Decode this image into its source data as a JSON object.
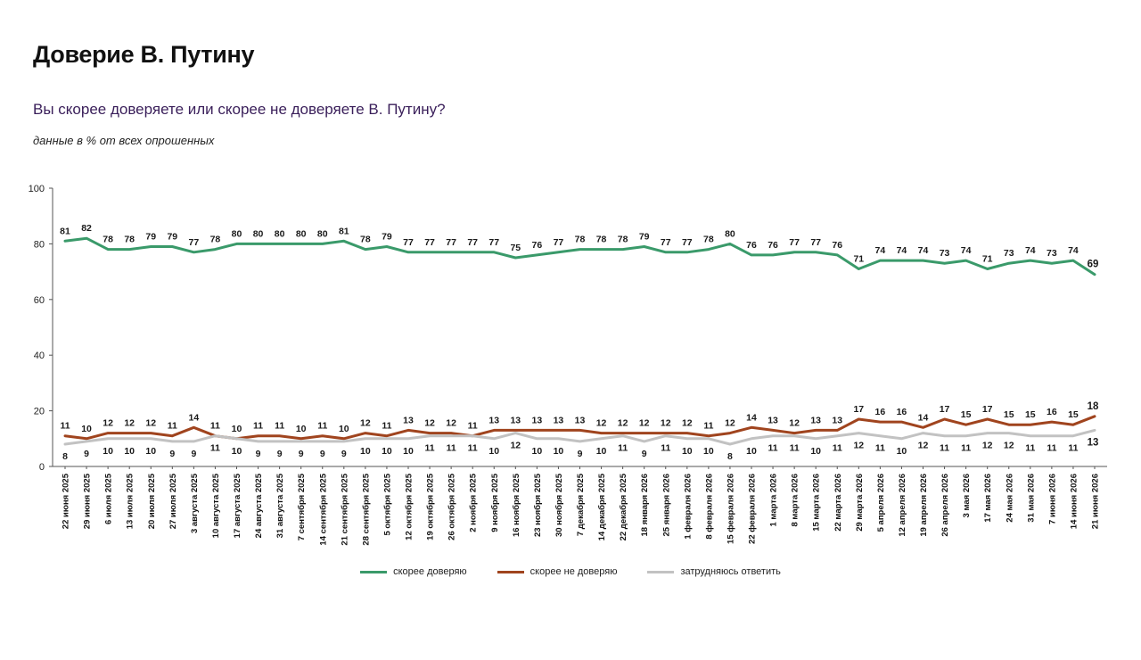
{
  "title": "Доверие В. Путину",
  "subtitle": "Вы скорее доверяете или скорее не доверяете В. Путину?",
  "note": "данные в % от всех опрошенных",
  "chart_data": {
    "type": "line",
    "ylim": [
      0,
      100
    ],
    "yticks": [
      0,
      20,
      40,
      60,
      80,
      100
    ],
    "grid": false,
    "legend_position": "bottom-center",
    "categories": [
      "22 июня 2025",
      "29 июня 2025",
      "6 июля 2025",
      "13 июля 2025",
      "20 июля 2025",
      "27 июля 2025",
      "3 августа 2025",
      "10 августа 2025",
      "17 августа 2025",
      "24 августа 2025",
      "31 августа 2025",
      "7 сентября 2025",
      "14 сентября 2025",
      "21 сентября 2025",
      "28 сентября 2025",
      "5 октября 2025",
      "12 октября 2025",
      "19 октября 2025",
      "26 октября 2025",
      "2 ноября 2025",
      "9 ноября 2025",
      "16 ноября 2025",
      "23 ноября 2025",
      "30 ноября 2025",
      "7 декабря 2025",
      "14 декабря 2025",
      "22 декабря 2025",
      "18 января 2026",
      "25 января 2026",
      "1 февраля 2026",
      "8 февраля 2026",
      "15 февраля 2026",
      "22 февраля 2026",
      "1 марта 2026",
      "8 марта 2026",
      "15 марта 2026",
      "22 марта 2026",
      "29 марта 2026",
      "5 апреля 2026",
      "12 апреля 2026",
      "19 апреля 2026",
      "26 апреля 2026",
      "3 мая 2026",
      "17 мая 2026",
      "24 мая 2026",
      "31 мая 2026",
      "7 июня 2026",
      "14 июня 2026",
      "21 июня 2026"
    ],
    "series": [
      {
        "name": "скорее доверяю",
        "color": "#3a9a6a",
        "label_pos": "above",
        "values": [
          81,
          82,
          78,
          78,
          79,
          79,
          77,
          78,
          80,
          80,
          80,
          80,
          80,
          81,
          78,
          79,
          77,
          77,
          77,
          77,
          77,
          75,
          76,
          77,
          78,
          78,
          78,
          79,
          77,
          77,
          78,
          80,
          76,
          76,
          77,
          77,
          76,
          71,
          74,
          74,
          74,
          73,
          74,
          71,
          73,
          74,
          73,
          74,
          69
        ]
      },
      {
        "name": "скорее не доверяю",
        "color": "#a0441e",
        "label_pos": "above",
        "values": [
          11,
          10,
          12,
          12,
          12,
          11,
          14,
          11,
          10,
          11,
          11,
          10,
          11,
          10,
          12,
          11,
          13,
          12,
          12,
          11,
          13,
          13,
          13,
          13,
          13,
          12,
          12,
          12,
          12,
          12,
          11,
          12,
          14,
          13,
          12,
          13,
          13,
          17,
          16,
          16,
          14,
          17,
          15,
          17,
          15,
          15,
          16,
          15,
          18
        ]
      },
      {
        "name": "затрудняюсь ответить",
        "color": "#c2c2c2",
        "label_pos": "below",
        "values": [
          8,
          9,
          10,
          10,
          10,
          9,
          9,
          11,
          10,
          9,
          9,
          9,
          9,
          9,
          10,
          10,
          10,
          11,
          11,
          11,
          10,
          12,
          10,
          10,
          9,
          10,
          11,
          9,
          11,
          10,
          10,
          8,
          10,
          11,
          11,
          10,
          11,
          12,
          11,
          10,
          12,
          11,
          11,
          12,
          12,
          11,
          11,
          11,
          13
        ]
      }
    ]
  }
}
